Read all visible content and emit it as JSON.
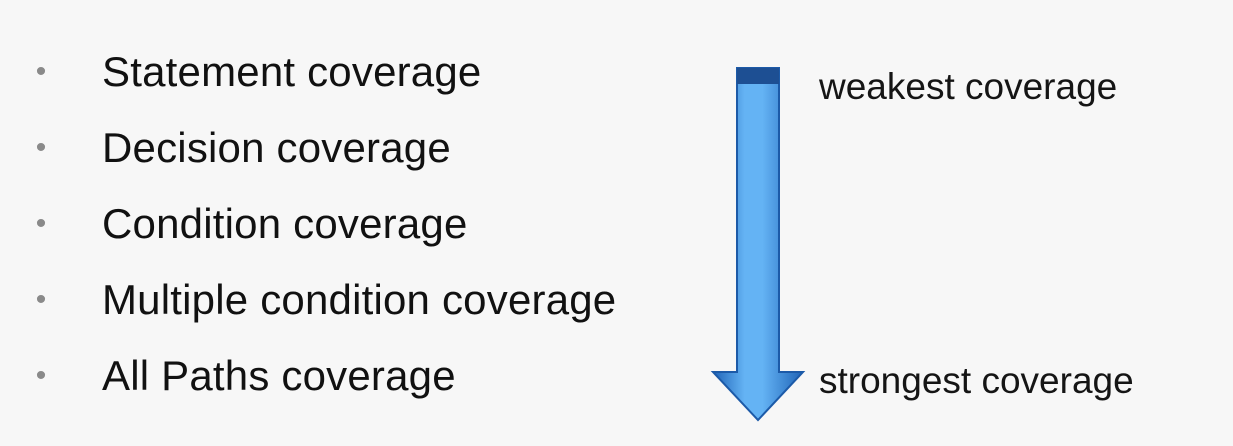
{
  "bullets": [
    {
      "text": "Statement coverage"
    },
    {
      "text": "Decision coverage"
    },
    {
      "text": "Condition coverage"
    },
    {
      "text": "Multiple condition coverage"
    },
    {
      "text": "All Paths coverage"
    }
  ],
  "arrow": {
    "icon": "down-arrow-icon",
    "direction": "down",
    "color_light": "#64b3f4",
    "color_dark": "#1f63b7",
    "top_band_color": "#1d4f93"
  },
  "labels": {
    "top": "weakest coverage",
    "bottom": "strongest coverage"
  }
}
